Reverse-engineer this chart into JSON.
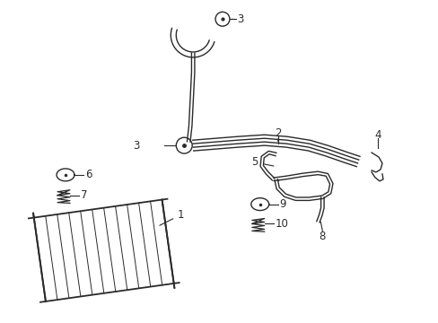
{
  "background_color": "#ffffff",
  "line_color": "#2a2a2a",
  "label_color": "#000000",
  "figsize": [
    4.89,
    3.6
  ],
  "dpi": 100
}
